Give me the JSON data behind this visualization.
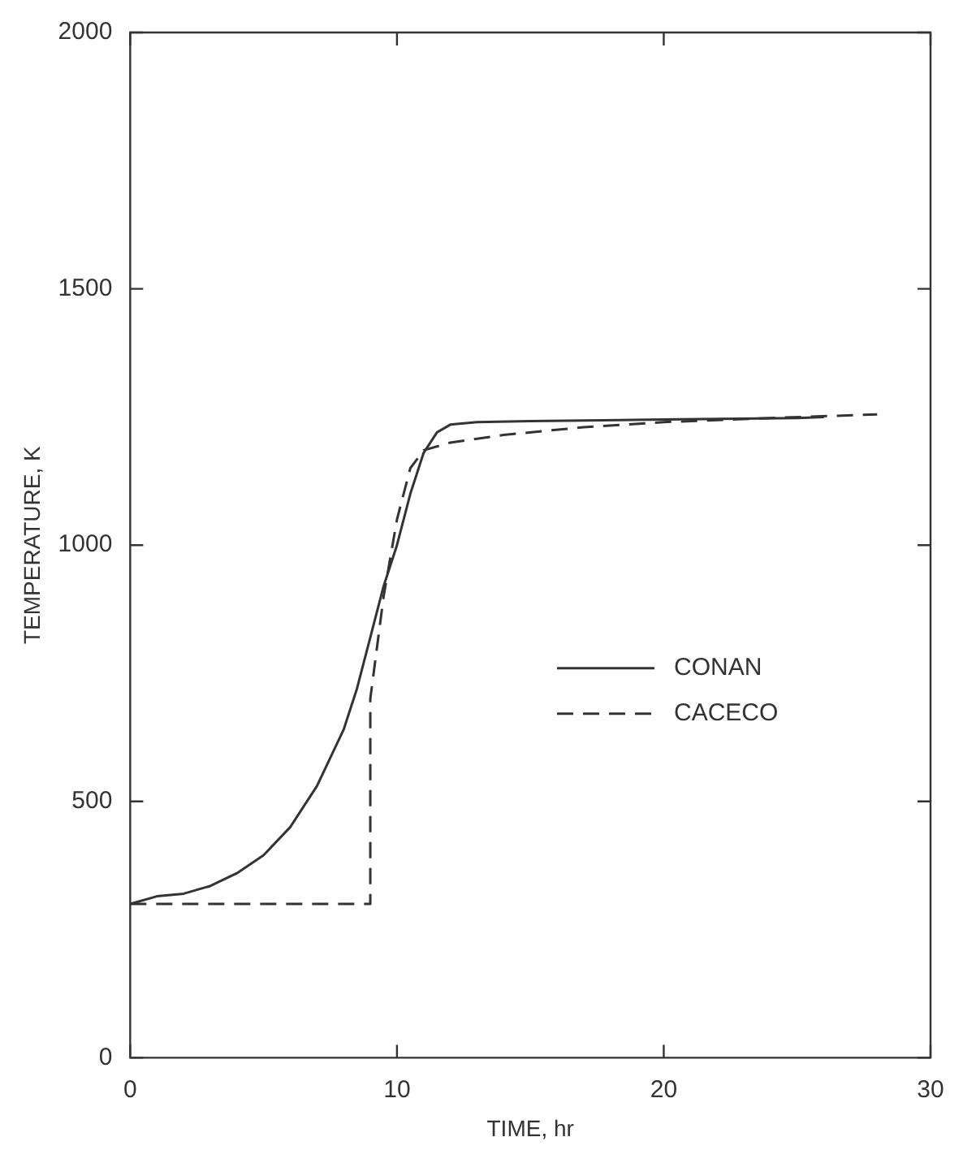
{
  "chart_data": {
    "type": "line",
    "xlabel": "TIME, hr",
    "ylabel": "TEMPERATURE, K",
    "xlim": [
      0,
      30
    ],
    "xticks": [
      0,
      10,
      20,
      30
    ],
    "ylim": [
      0,
      2000
    ],
    "yticks": [
      0,
      500,
      1000,
      1500,
      2000
    ],
    "grid": false,
    "legend": "right",
    "marker": "none",
    "series": [
      {
        "name": "CONAN",
        "color": "#333333",
        "line_style": "solid",
        "x": [
          0,
          1,
          2,
          3,
          4,
          5,
          6,
          7,
          8,
          8.5,
          9,
          9.5,
          10,
          10.5,
          11,
          11.5,
          12,
          13,
          15,
          20,
          25,
          26
        ],
        "values": [
          300,
          315,
          320,
          335,
          360,
          395,
          450,
          530,
          640,
          720,
          820,
          920,
          1000,
          1100,
          1180,
          1220,
          1235,
          1240,
          1242,
          1245,
          1248,
          1250
        ]
      },
      {
        "name": "CACECO",
        "color": "#333333",
        "line_style": "dashed",
        "x": [
          0,
          9,
          9,
          9.5,
          10,
          10.5,
          11,
          12,
          14,
          17,
          20,
          24,
          28
        ],
        "values": [
          300,
          300,
          700,
          900,
          1050,
          1150,
          1185,
          1200,
          1215,
          1230,
          1240,
          1248,
          1255
        ]
      }
    ]
  }
}
